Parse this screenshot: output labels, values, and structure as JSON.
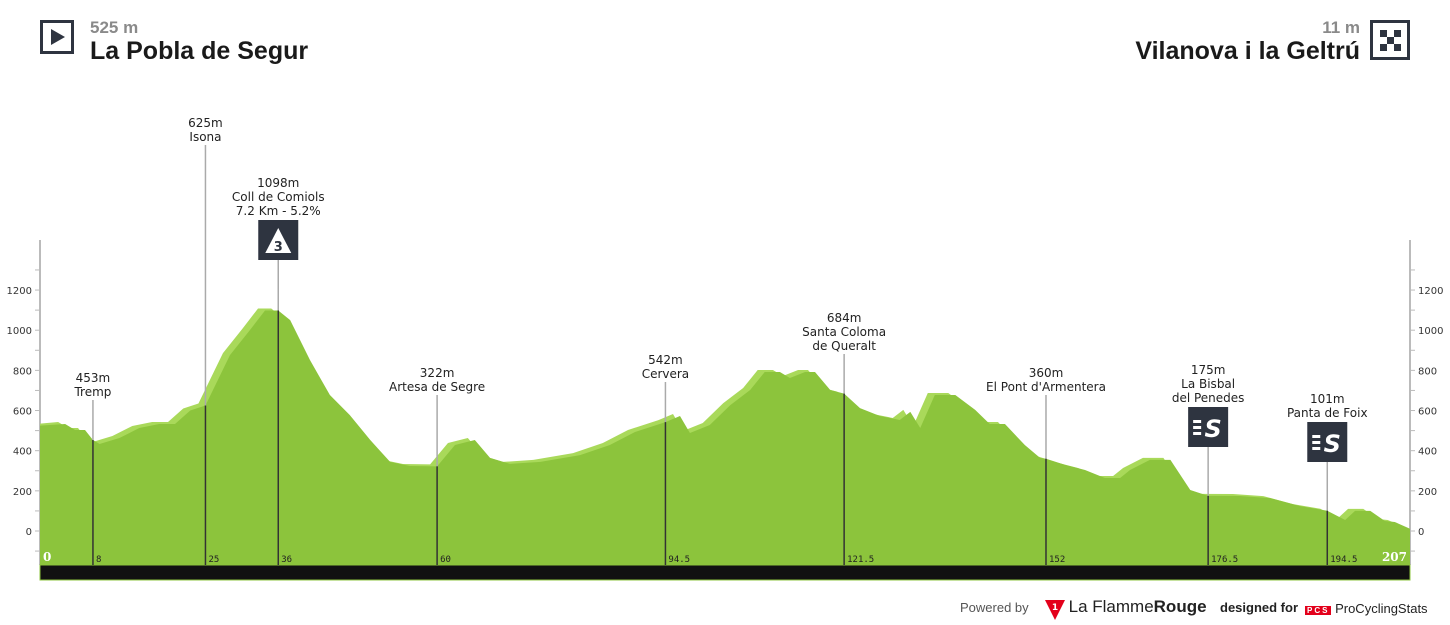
{
  "start": {
    "elevation": "525 m",
    "name": "La Pobla de Segur",
    "icon": "play-icon"
  },
  "finish": {
    "elevation": "11 m",
    "name": "Vilanova i la Geltrú",
    "icon": "checkered-flag-icon"
  },
  "colors": {
    "profile": "#8cc43c",
    "profile_light": "#a9d95a",
    "km_band": "#111111",
    "icon_bg": "#2e3440"
  },
  "chart_data": {
    "type": "area",
    "xlabel": "",
    "ylabel": "",
    "xlim": [
      0,
      207
    ],
    "ylim": [
      -200,
      1400
    ],
    "yticks": [
      0,
      200,
      400,
      600,
      800,
      1000,
      1200
    ],
    "y_axis_both_sides": true,
    "km_start_label": "0",
    "km_end_label": "207",
    "profile": [
      [
        0,
        525
      ],
      [
        3.8,
        533
      ],
      [
        5.3,
        503
      ],
      [
        6.8,
        503
      ],
      [
        8,
        453
      ],
      [
        9,
        433
      ],
      [
        12,
        463
      ],
      [
        15,
        513
      ],
      [
        18,
        533
      ],
      [
        20.4,
        533
      ],
      [
        22.7,
        600
      ],
      [
        25,
        625
      ],
      [
        28.7,
        876
      ],
      [
        31.7,
        1000
      ],
      [
        34,
        1098
      ],
      [
        36,
        1098
      ],
      [
        37.8,
        1050
      ],
      [
        40.8,
        851
      ],
      [
        43.8,
        677
      ],
      [
        46.8,
        578
      ],
      [
        49.9,
        453
      ],
      [
        52.9,
        344
      ],
      [
        55.9,
        324
      ],
      [
        60,
        322
      ],
      [
        62.7,
        428
      ],
      [
        65.7,
        453
      ],
      [
        68,
        364
      ],
      [
        71,
        334
      ],
      [
        75.6,
        344
      ],
      [
        81.6,
        378
      ],
      [
        86.1,
        428
      ],
      [
        89.9,
        493
      ],
      [
        94.5,
        542
      ],
      [
        96.7,
        573
      ],
      [
        98.2,
        488
      ],
      [
        101.2,
        528
      ],
      [
        104.3,
        627
      ],
      [
        107.3,
        702
      ],
      [
        109.5,
        792
      ],
      [
        111.8,
        792
      ],
      [
        113.3,
        762
      ],
      [
        115.6,
        792
      ],
      [
        117.1,
        792
      ],
      [
        119.4,
        702
      ],
      [
        121.5,
        684
      ],
      [
        123.9,
        612
      ],
      [
        126.9,
        573
      ],
      [
        129.9,
        553
      ],
      [
        131.5,
        593
      ],
      [
        133,
        513
      ],
      [
        135.2,
        677
      ],
      [
        138.3,
        677
      ],
      [
        141.3,
        603
      ],
      [
        143.5,
        533
      ],
      [
        145.8,
        533
      ],
      [
        148.8,
        428
      ],
      [
        151.1,
        364
      ],
      [
        152,
        360
      ],
      [
        154.9,
        329
      ],
      [
        157.9,
        304
      ],
      [
        160.9,
        264
      ],
      [
        163.2,
        264
      ],
      [
        164.7,
        304
      ],
      [
        167.7,
        354
      ],
      [
        170.8,
        354
      ],
      [
        173.8,
        204
      ],
      [
        176.5,
        175
      ],
      [
        181.3,
        174
      ],
      [
        185.9,
        164
      ],
      [
        190.4,
        124
      ],
      [
        194.5,
        101
      ],
      [
        197.2,
        55
      ],
      [
        198.7,
        100
      ],
      [
        201,
        100
      ],
      [
        203.2,
        50
      ],
      [
        204.7,
        45
      ],
      [
        207,
        11
      ]
    ],
    "markers": [
      {
        "km": 8,
        "km_label": "8",
        "elevation": "453m",
        "lines": [
          "Tremp"
        ],
        "icon": ""
      },
      {
        "km": 25,
        "km_label": "25",
        "elevation": "625m",
        "lines": [
          "Isona"
        ],
        "icon": ""
      },
      {
        "km": 36,
        "km_label": "36",
        "elevation": "1098m",
        "lines": [
          "Coll de Comiols",
          "7.2 Km - 5.2%"
        ],
        "icon": "climb-category-3-icon",
        "icon_text": "3"
      },
      {
        "km": 60,
        "km_label": "60",
        "elevation": "322m",
        "lines": [
          "Artesa de Segre"
        ],
        "icon": ""
      },
      {
        "km": 94.5,
        "km_label": "94.5",
        "elevation": "542m",
        "lines": [
          "Cervera"
        ],
        "icon": ""
      },
      {
        "km": 121.5,
        "km_label": "121.5",
        "elevation": "684m",
        "lines": [
          "Santa Coloma",
          "de Queralt"
        ],
        "icon": ""
      },
      {
        "km": 152,
        "km_label": "152",
        "elevation": "360m",
        "lines": [
          "El Pont d'Armentera"
        ],
        "icon": ""
      },
      {
        "km": 176.5,
        "km_label": "176.5",
        "elevation": "175m",
        "lines": [
          "La Bisbal",
          "del Penedes"
        ],
        "icon": "sprint-icon",
        "icon_text": "S"
      },
      {
        "km": 194.5,
        "km_label": "194.5",
        "elevation": "101m",
        "lines": [
          "Panta de Foix"
        ],
        "icon": "sprint-icon",
        "icon_text": "S"
      }
    ]
  },
  "footer": {
    "powered_by": "Powered by",
    "brand_1": "La Flamme",
    "brand_1b": "Rouge",
    "designed_for": "designed for",
    "brand_2": "ProCyclingStats",
    "brand_2_logo": "PCS"
  }
}
